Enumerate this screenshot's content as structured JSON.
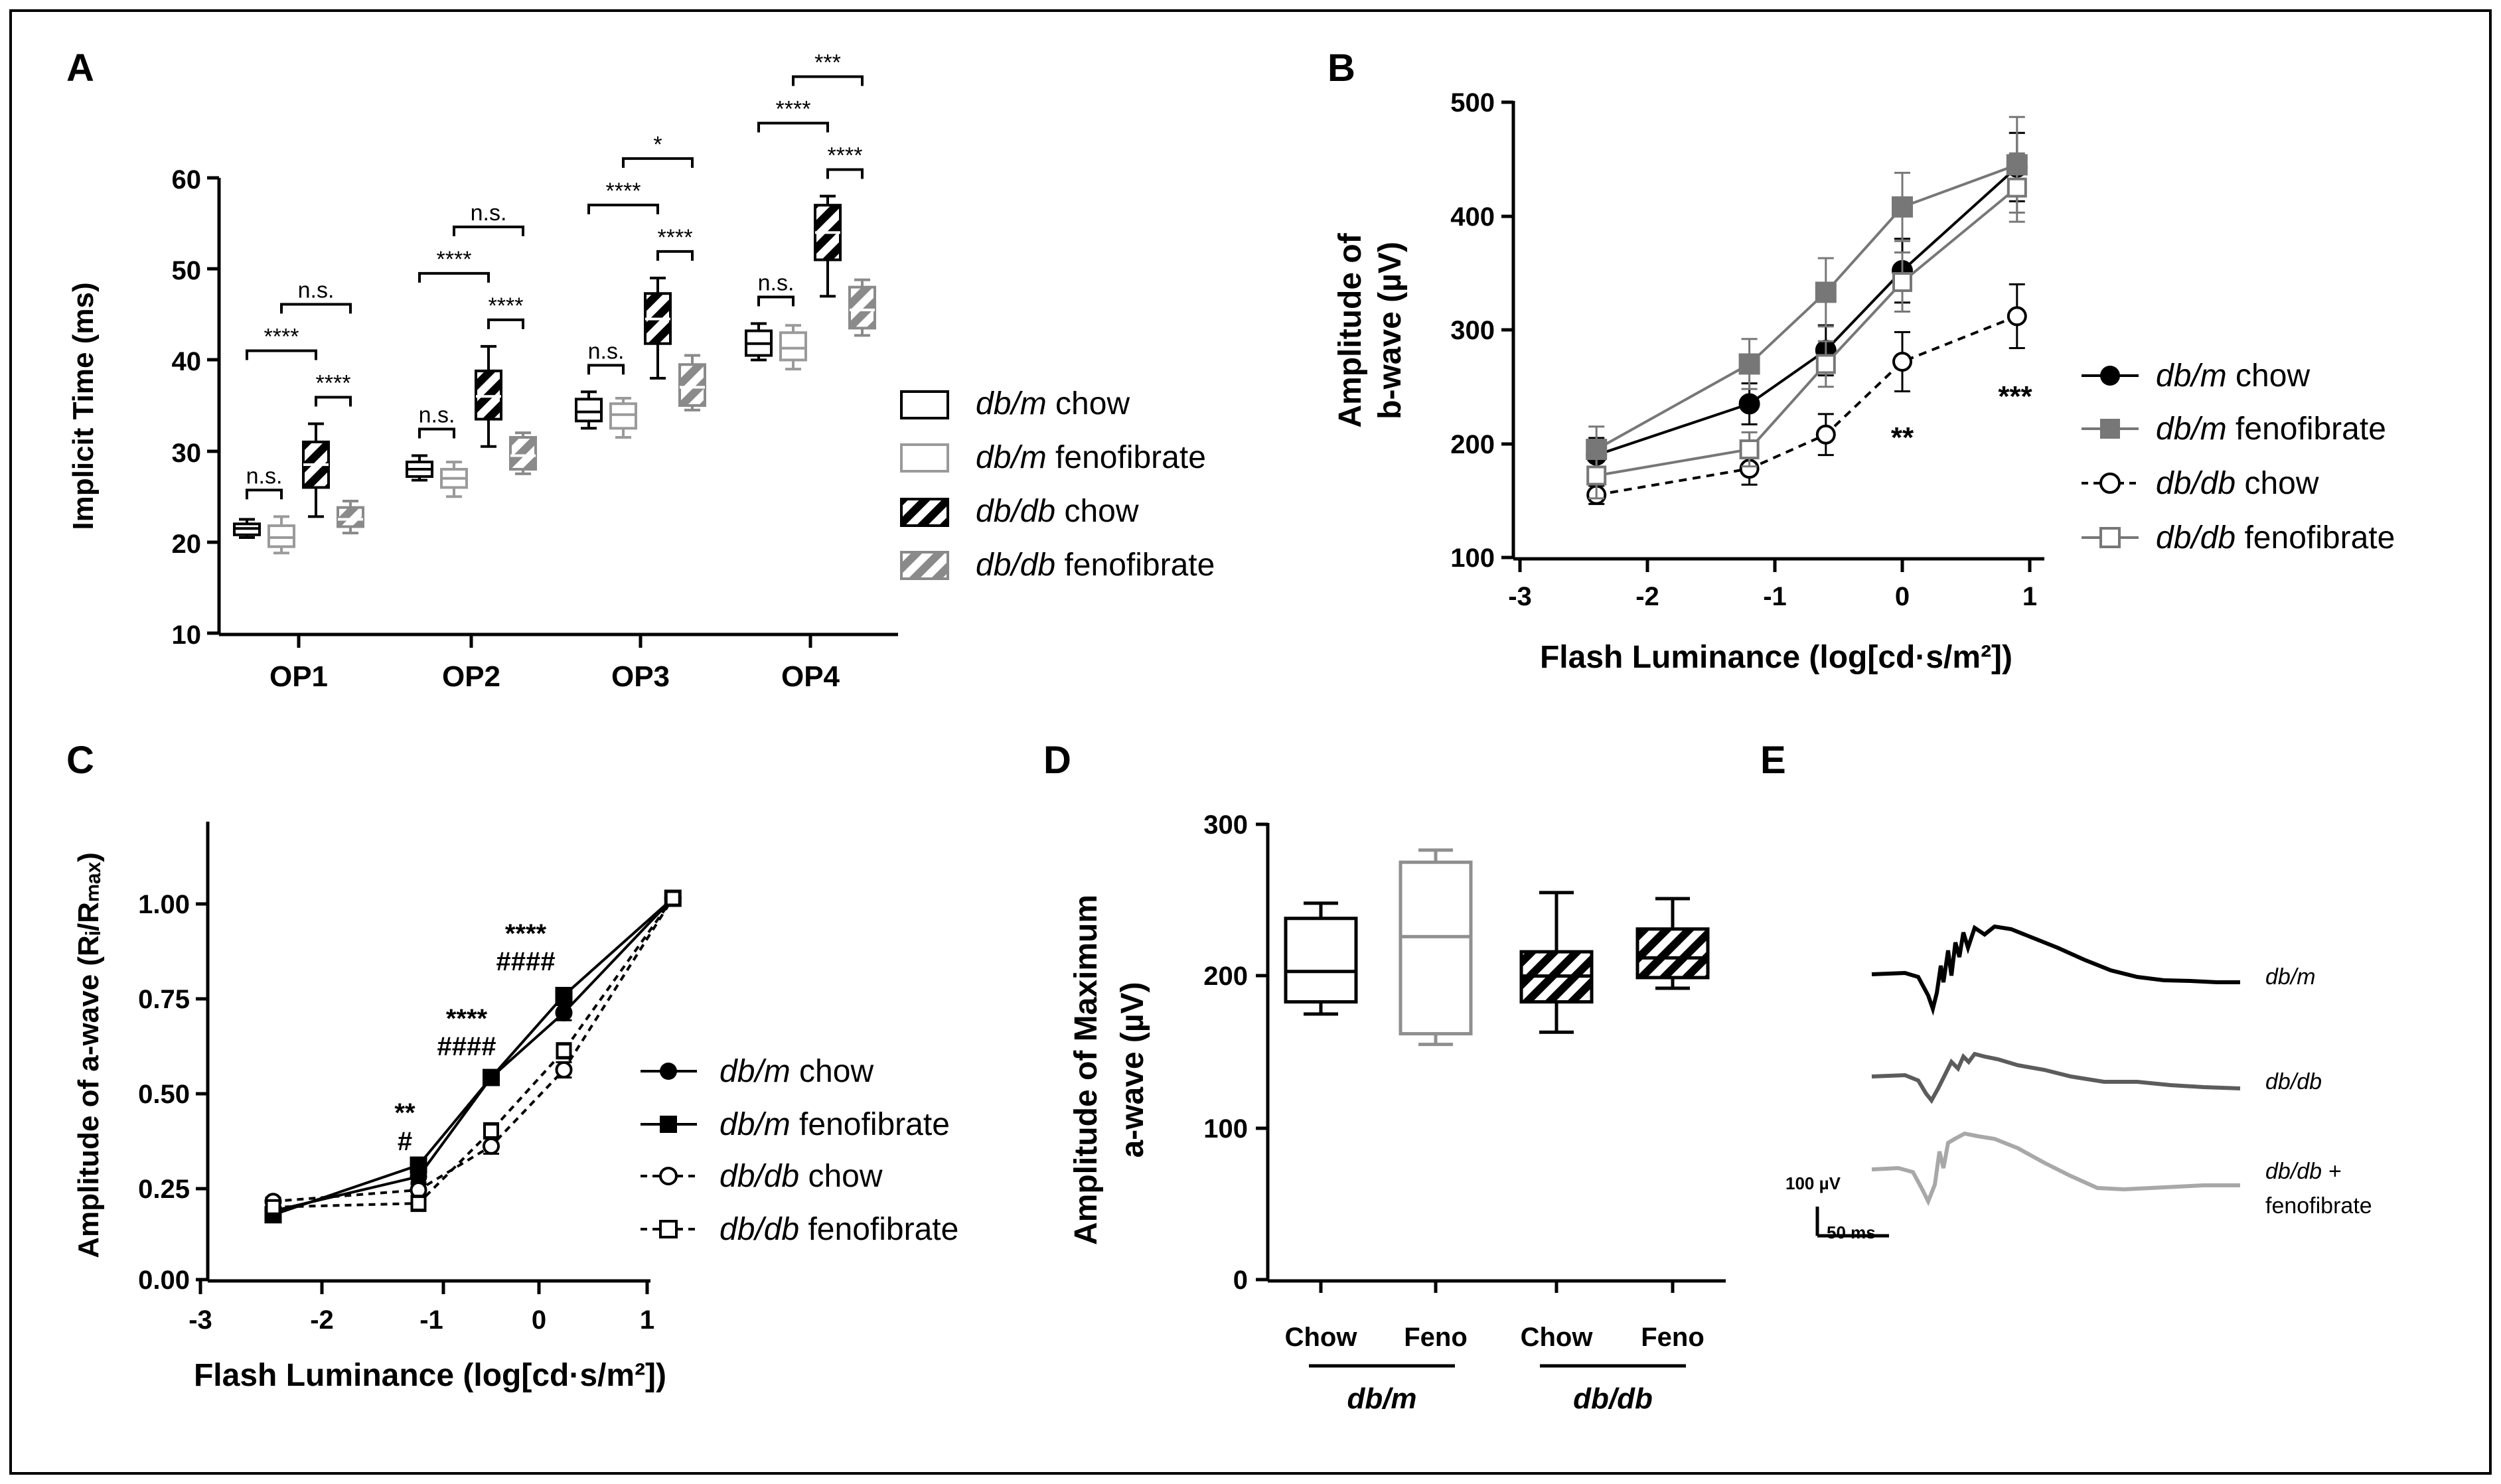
{
  "panels": {
    "A": {
      "letter": "A",
      "ylabel": "Implicit Time (ms)",
      "yticks": [
        "60",
        "50",
        "40",
        "30",
        "20",
        "10"
      ],
      "categories": [
        "OP1",
        "OP2",
        "OP3",
        "OP4"
      ],
      "legend": [
        {
          "italic": "db/m",
          "rest": " chow"
        },
        {
          "italic": "db/m",
          "rest": " fenofibrate"
        },
        {
          "italic": "db/db",
          "rest": " chow"
        },
        {
          "italic": "db/db",
          "rest": " fenofibrate"
        }
      ],
      "brackets": [
        [
          "n.s.",
          "****",
          "n.s.",
          "****"
        ],
        [
          "n.s.",
          "****",
          "n.s.",
          "****"
        ],
        [
          "n.s.",
          "****",
          "*",
          "****"
        ],
        [
          "n.s.",
          "****",
          "***",
          "****"
        ]
      ]
    },
    "B": {
      "letter": "B",
      "ylabel_line1": "Amplitude of",
      "ylabel_line2": "b-wave (µV)",
      "xlabel": "Flash Luminance (log[cd·s/m²])",
      "yticks": [
        "500",
        "400",
        "300",
        "200",
        "100"
      ],
      "xticks": [
        "-3",
        "-2",
        "-1",
        "0",
        "1"
      ],
      "legend": [
        {
          "italic": "db/m",
          "rest": " chow"
        },
        {
          "italic": "db/m",
          "rest": " fenofibrate"
        },
        {
          "italic": "db/db",
          "rest": " chow"
        },
        {
          "italic": "db/db",
          "rest": " fenofibrate"
        }
      ],
      "annotations": [
        "**",
        "***"
      ]
    },
    "C": {
      "letter": "C",
      "ylabel": "Amplitude of a-wave (Rᵢ/Rₘₐₓ)",
      "xlabel": "Flash Luminance (log[cd·s/m²])",
      "yticks": [
        "1.00",
        "0.75",
        "0.50",
        "0.25",
        "0.00"
      ],
      "xticks": [
        "-3",
        "-2",
        "-1",
        "0",
        "1"
      ],
      "legend": [
        {
          "italic": "db/m",
          "rest": " chow"
        },
        {
          "italic": "db/m",
          "rest": " fenofibrate"
        },
        {
          "italic": "db/db",
          "rest": " chow"
        },
        {
          "italic": "db/db",
          "rest": " fenofibrate"
        }
      ],
      "annotations": [
        {
          "top": "**",
          "bottom": "#"
        },
        {
          "top": "****",
          "bottom": "####"
        },
        {
          "top": "****",
          "bottom": "####"
        }
      ]
    },
    "D": {
      "letter": "D",
      "ylabel_line1": "Amplitude of Maximum",
      "ylabel_line2": "a-wave (µV)",
      "yticks": [
        "300",
        "200",
        "100",
        "0"
      ],
      "categories": [
        "Chow",
        "Feno",
        "Chow",
        "Feno"
      ],
      "groups": [
        "db/m",
        "db/db"
      ]
    },
    "E": {
      "letter": "E",
      "traces": [
        "db/m",
        "db/db",
        "db/db +"
      ],
      "trace3_line2": "fenofibrate",
      "scale_amp": "100 µV",
      "scale_time": "50 ms"
    }
  },
  "chart_data": [
    {
      "panel": "A",
      "type": "box",
      "ylabel": "Implicit Time (ms)",
      "ylim": [
        10,
        60
      ],
      "categories": [
        "OP1",
        "OP2",
        "OP3",
        "OP4"
      ],
      "series": [
        {
          "name": "db/m chow",
          "color": "#000000",
          "hatch": false,
          "boxes": [
            [
              20.5,
              20.8,
              21.5,
              22.0,
              22.5
            ],
            [
              26.8,
              27.2,
              28.0,
              28.8,
              29.5
            ],
            [
              32.5,
              33.3,
              34.3,
              35.7,
              36.5
            ],
            [
              40.0,
              40.5,
              41.8,
              43.2,
              44.0
            ]
          ]
        },
        {
          "name": "db/m fenofibrate",
          "color": "#9a9a9a",
          "hatch": false,
          "boxes": [
            [
              18.8,
              19.5,
              20.5,
              21.8,
              22.8
            ],
            [
              25.0,
              26.0,
              27.0,
              28.0,
              28.8
            ],
            [
              31.5,
              32.5,
              34.0,
              35.2,
              35.8
            ],
            [
              39.0,
              40.0,
              41.3,
              43.0,
              43.8
            ]
          ]
        },
        {
          "name": "db/db chow",
          "color": "#000000",
          "hatch": true,
          "boxes": [
            [
              22.8,
              26.0,
              28.5,
              31.0,
              33.0
            ],
            [
              30.5,
              33.5,
              36.0,
              38.8,
              41.5
            ],
            [
              38.0,
              41.8,
              44.5,
              47.3,
              49.0
            ],
            [
              47.0,
              51.0,
              54.0,
              57.0,
              58.0
            ]
          ]
        },
        {
          "name": "db/db fenofibrate",
          "color": "#8a8a8a",
          "hatch": true,
          "boxes": [
            [
              21.0,
              21.7,
              22.5,
              23.8,
              24.5
            ],
            [
              27.5,
              28.0,
              29.5,
              31.5,
              32.0
            ],
            [
              34.5,
              35.0,
              37.0,
              39.5,
              40.5
            ],
            [
              42.7,
              43.5,
              45.5,
              48.0,
              48.8
            ]
          ]
        }
      ]
    },
    {
      "panel": "B",
      "type": "line",
      "ylabel": "Amplitude of b-wave (µV)",
      "xlabel": "Flash Luminance (log[cd·s/m²])",
      "xlim": [
        -3,
        1
      ],
      "ylim": [
        100,
        500
      ],
      "x": [
        -2.4,
        -1.2,
        -0.6,
        0,
        0.9
      ],
      "series": [
        {
          "name": "db/m chow",
          "values": [
            190,
            235,
            282,
            352,
            443
          ],
          "err": [
            15,
            18,
            22,
            28,
            30
          ]
        },
        {
          "name": "db/m fenofibrate",
          "values": [
            195,
            270,
            333,
            408,
            445
          ],
          "err": [
            20,
            22,
            30,
            30,
            42
          ]
        },
        {
          "name": "db/db chow",
          "values": [
            155,
            178,
            208,
            272,
            312
          ],
          "err": [
            8,
            14,
            18,
            26,
            28
          ]
        },
        {
          "name": "db/db fenofibrate",
          "values": [
            172,
            195,
            270,
            342,
            425
          ],
          "err": [
            20,
            15,
            20,
            26,
            30
          ]
        }
      ]
    },
    {
      "panel": "C",
      "type": "line",
      "ylabel": "Amplitude of a-wave (Ri/Rmax)",
      "xlabel": "Flash Luminance (log[cd·s/m²])",
      "xlim": [
        -3,
        1
      ],
      "ylim": [
        0,
        1.1
      ],
      "x": [
        -2.4,
        -1.2,
        -0.6,
        0,
        0.9
      ],
      "series": [
        {
          "name": "db/m chow",
          "values": [
            0.18,
            0.27,
            0.53,
            0.7,
            1.0
          ],
          "err": [
            0.01,
            0.02,
            0.02,
            0.02,
            0.0
          ]
        },
        {
          "name": "db/m fenofibrate",
          "values": [
            0.17,
            0.3,
            0.53,
            0.745,
            1.0
          ],
          "err": [
            0.01,
            0.02,
            0.02,
            0.02,
            0.0
          ]
        },
        {
          "name": "db/db chow",
          "values": [
            0.205,
            0.235,
            0.35,
            0.55,
            1.0
          ],
          "err": [
            0.01,
            0.02,
            0.02,
            0.02,
            0.0
          ]
        },
        {
          "name": "db/db fenofibrate",
          "values": [
            0.19,
            0.2,
            0.39,
            0.6,
            1.0
          ],
          "err": [
            0.01,
            0.02,
            0.02,
            0.02,
            0.0
          ]
        }
      ]
    },
    {
      "panel": "D",
      "type": "box",
      "ylabel": "Amplitude of Maximum a-wave (µV)",
      "ylim": [
        0,
        300
      ],
      "categories": [
        "Chow",
        "Feno",
        "Chow",
        "Feno"
      ],
      "series": [
        {
          "name": "db/m chow",
          "color": "#000000",
          "hatch": false,
          "box": [
            175,
            183,
            203,
            238,
            248
          ]
        },
        {
          "name": "db/m fenofibrate",
          "color": "#8f8f8f",
          "hatch": false,
          "box": [
            155,
            162,
            226,
            275,
            283
          ]
        },
        {
          "name": "db/db chow",
          "color": "#000000",
          "hatch": true,
          "box": [
            163,
            183,
            200,
            216,
            255
          ]
        },
        {
          "name": "db/db fenofibrate",
          "color": "#000000",
          "hatch": true,
          "box": [
            192,
            199,
            212,
            231,
            251
          ]
        }
      ]
    }
  ]
}
